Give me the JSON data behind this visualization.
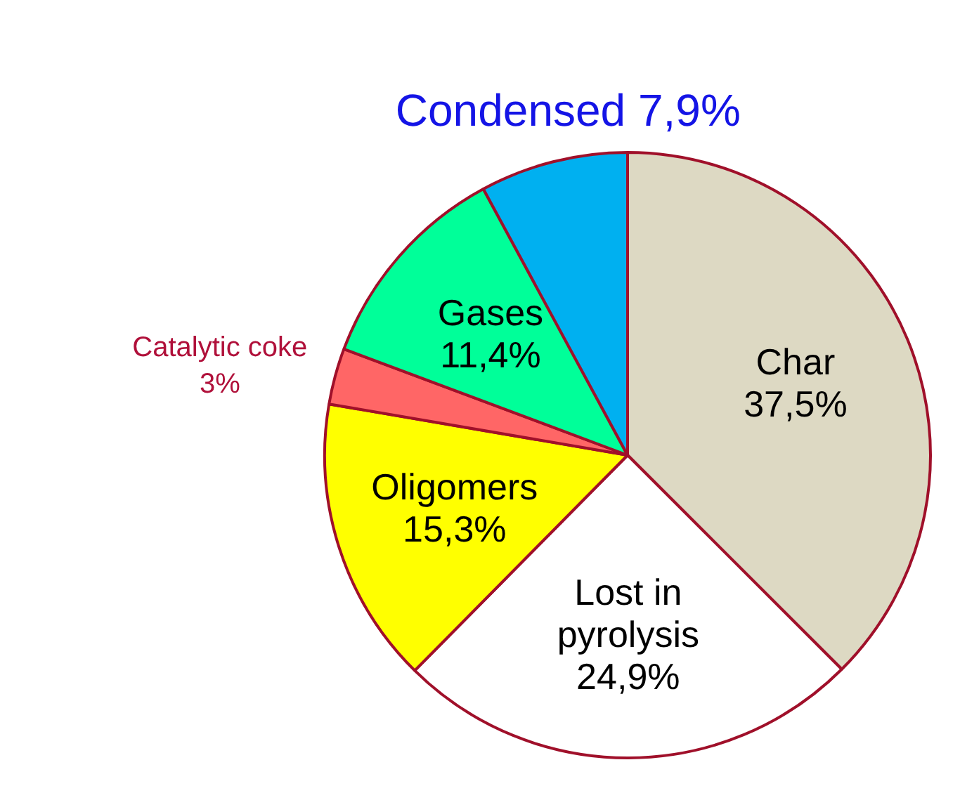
{
  "chart_data": {
    "type": "pie",
    "categories": [
      "Char",
      "Lost in pyrolysis",
      "Oligomers",
      "Catalytic coke",
      "Gases",
      "Condensed"
    ],
    "values": [
      37.5,
      24.9,
      15.3,
      3,
      11.4,
      7.9
    ],
    "value_labels": [
      "37,5%",
      "24,9%",
      "15,3%",
      "3%",
      "11,4%",
      "7,9%"
    ],
    "colors": [
      "#ddd9c3",
      "#ffffff",
      "#ffff00",
      "#ff6666",
      "#00ff99",
      "#00b0f0"
    ],
    "legend": false
  }
}
